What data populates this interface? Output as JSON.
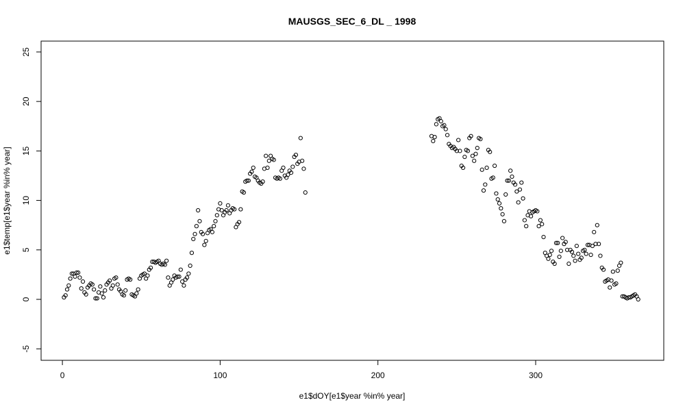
{
  "chart_data": {
    "type": "scatter",
    "title": "MAUSGS_SEC_6_DL _ 1998",
    "x_label": "e1$dOY[e1$year %in% year]",
    "y_label": "e1$temp[e1$year %in% year]",
    "color": "#000000",
    "xlim": [
      -13.5,
      381.2
    ],
    "ylim": [
      -6.16,
      26.1
    ],
    "xticks": [
      0,
      100,
      200,
      300
    ],
    "yticks": [
      -5,
      0,
      5,
      10,
      15,
      20,
      25
    ],
    "x": [
      1,
      2,
      3,
      4,
      5,
      6,
      7,
      8,
      9,
      10,
      11,
      12,
      13,
      14,
      15,
      16,
      17,
      18,
      19,
      20,
      21,
      22,
      23,
      24,
      25,
      26,
      27,
      28,
      29,
      30,
      31,
      32,
      33,
      34,
      35,
      36,
      37,
      38,
      39,
      40,
      41,
      42,
      43,
      44,
      45,
      46,
      47,
      48,
      49,
      50,
      51,
      52,
      53,
      54,
      55,
      56,
      57,
      58,
      59,
      60,
      61,
      62,
      63,
      64,
      65,
      66,
      67,
      68,
      69,
      70,
      71,
      72,
      73,
      74,
      75,
      76,
      77,
      78,
      79,
      80,
      81,
      82,
      83,
      84,
      85,
      86,
      87,
      88,
      89,
      90,
      91,
      92,
      93,
      94,
      95,
      96,
      97,
      98,
      99,
      100,
      101,
      102,
      103,
      104,
      105,
      106,
      107,
      108,
      109,
      110,
      111,
      112,
      113,
      114,
      115,
      116,
      117,
      118,
      119,
      120,
      121,
      122,
      123,
      124,
      125,
      126,
      127,
      128,
      129,
      130,
      131,
      132,
      133,
      134,
      135,
      136,
      137,
      138,
      139,
      140,
      141,
      142,
      143,
      144,
      145,
      146,
      147,
      148,
      149,
      150,
      151,
      152,
      153,
      154,
      234,
      235,
      236,
      237,
      238,
      239,
      240,
      241,
      242,
      243,
      244,
      245,
      246,
      247,
      248,
      249,
      250,
      251,
      252,
      253,
      254,
      255,
      256,
      257,
      258,
      259,
      260,
      261,
      262,
      263,
      264,
      265,
      266,
      267,
      268,
      269,
      270,
      271,
      272,
      273,
      274,
      275,
      276,
      277,
      278,
      279,
      280,
      281,
      282,
      283,
      284,
      285,
      286,
      287,
      288,
      289,
      290,
      291,
      292,
      293,
      294,
      295,
      296,
      297,
      298,
      299,
      300,
      301,
      302,
      303,
      304,
      305,
      306,
      307,
      308,
      309,
      310,
      311,
      312,
      313,
      314,
      315,
      316,
      317,
      318,
      319,
      320,
      321,
      322,
      323,
      324,
      325,
      326,
      327,
      328,
      329,
      330,
      331,
      332,
      333,
      334,
      335,
      336,
      337,
      338,
      339,
      340,
      341,
      342,
      343,
      344,
      345,
      346,
      347,
      348,
      349,
      350,
      351,
      352,
      353,
      354,
      355,
      356,
      357,
      358,
      359,
      360,
      361,
      362,
      363,
      364,
      365
    ],
    "y": [
      0.2,
      0.4,
      1.0,
      1.4,
      2.1,
      2.6,
      2.6,
      2.3,
      2.7,
      2.7,
      2.2,
      1.1,
      1.8,
      0.7,
      0.5,
      1.2,
      1.4,
      1.6,
      1.5,
      1.0,
      0.1,
      0.1,
      0.7,
      1.3,
      0.6,
      0.2,
      0.9,
      1.5,
      1.7,
      1.9,
      1.1,
      1.4,
      2.1,
      2.2,
      1.5,
      1.0,
      0.8,
      0.5,
      0.4,
      0.9,
      2.0,
      2.1,
      2.0,
      0.5,
      0.4,
      0.3,
      0.6,
      1.0,
      2.1,
      2.4,
      2.5,
      2.6,
      2.1,
      2.4,
      3.0,
      3.2,
      3.8,
      3.8,
      3.7,
      3.8,
      3.9,
      3.6,
      3.5,
      3.6,
      3.5,
      3.9,
      2.2,
      1.4,
      1.7,
      2.0,
      2.4,
      2.2,
      2.3,
      2.3,
      3.0,
      1.8,
      1.4,
      2.0,
      2.2,
      2.6,
      3.4,
      4.7,
      6.1,
      6.6,
      7.4,
      9.0,
      7.9,
      6.8,
      6.6,
      5.5,
      5.9,
      6.7,
      7.0,
      7.1,
      6.8,
      7.4,
      7.9,
      8.5,
      9.1,
      9.7,
      9.0,
      8.5,
      8.8,
      9.0,
      9.5,
      8.7,
      9.0,
      9.2,
      9.1,
      7.3,
      7.6,
      7.8,
      9.1,
      10.9,
      10.8,
      11.9,
      12.0,
      12.0,
      12.7,
      12.9,
      13.3,
      12.4,
      12.3,
      12.0,
      11.8,
      11.7,
      11.9,
      13.2,
      14.5,
      13.3,
      14.0,
      14.5,
      14.2,
      14.1,
      12.3,
      12.2,
      12.3,
      12.2,
      13.0,
      13.3,
      12.5,
      12.3,
      12.6,
      13.0,
      12.8,
      13.4,
      14.4,
      14.6,
      13.7,
      13.9,
      16.3,
      14.0,
      13.2,
      10.8,
      16.5,
      16.0,
      16.4,
      17.7,
      18.2,
      18.3,
      18.0,
      17.5,
      17.6,
      17.2,
      16.6,
      15.7,
      15.5,
      15.3,
      15.4,
      15.2,
      15.0,
      16.1,
      15.0,
      13.5,
      13.3,
      14.4,
      15.1,
      15.0,
      16.3,
      16.5,
      14.5,
      14.0,
      14.7,
      15.3,
      16.3,
      16.2,
      13.1,
      11.0,
      11.6,
      13.3,
      15.1,
      14.9,
      12.2,
      12.3,
      13.5,
      10.7,
      10.1,
      9.7,
      9.2,
      8.6,
      7.9,
      10.6,
      12.0,
      12.0,
      13.0,
      12.4,
      11.8,
      11.6,
      10.9,
      9.8,
      11.1,
      11.8,
      10.2,
      8.0,
      7.4,
      8.5,
      8.9,
      8.4,
      8.8,
      8.9,
      9.0,
      8.9,
      7.4,
      8.0,
      7.6,
      6.3,
      4.7,
      4.4,
      4.1,
      4.5,
      4.9,
      3.8,
      3.6,
      5.7,
      5.7,
      4.3,
      4.9,
      6.2,
      5.6,
      5.8,
      5.0,
      3.6,
      5.0,
      4.8,
      4.4,
      3.9,
      5.4,
      4.6,
      4.0,
      4.2,
      4.9,
      5.0,
      4.6,
      5.5,
      5.5,
      4.5,
      5.4,
      6.8,
      5.6,
      7.5,
      5.6,
      4.4,
      3.2,
      3.0,
      1.8,
      1.9,
      2.0,
      1.2,
      1.9,
      2.8,
      1.5,
      1.6,
      2.9,
      3.4,
      3.7,
      0.3,
      0.3,
      0.2,
      0.1,
      0.2,
      0.2,
      0.3,
      0.4,
      0.5,
      0.3,
      0.0
    ]
  }
}
